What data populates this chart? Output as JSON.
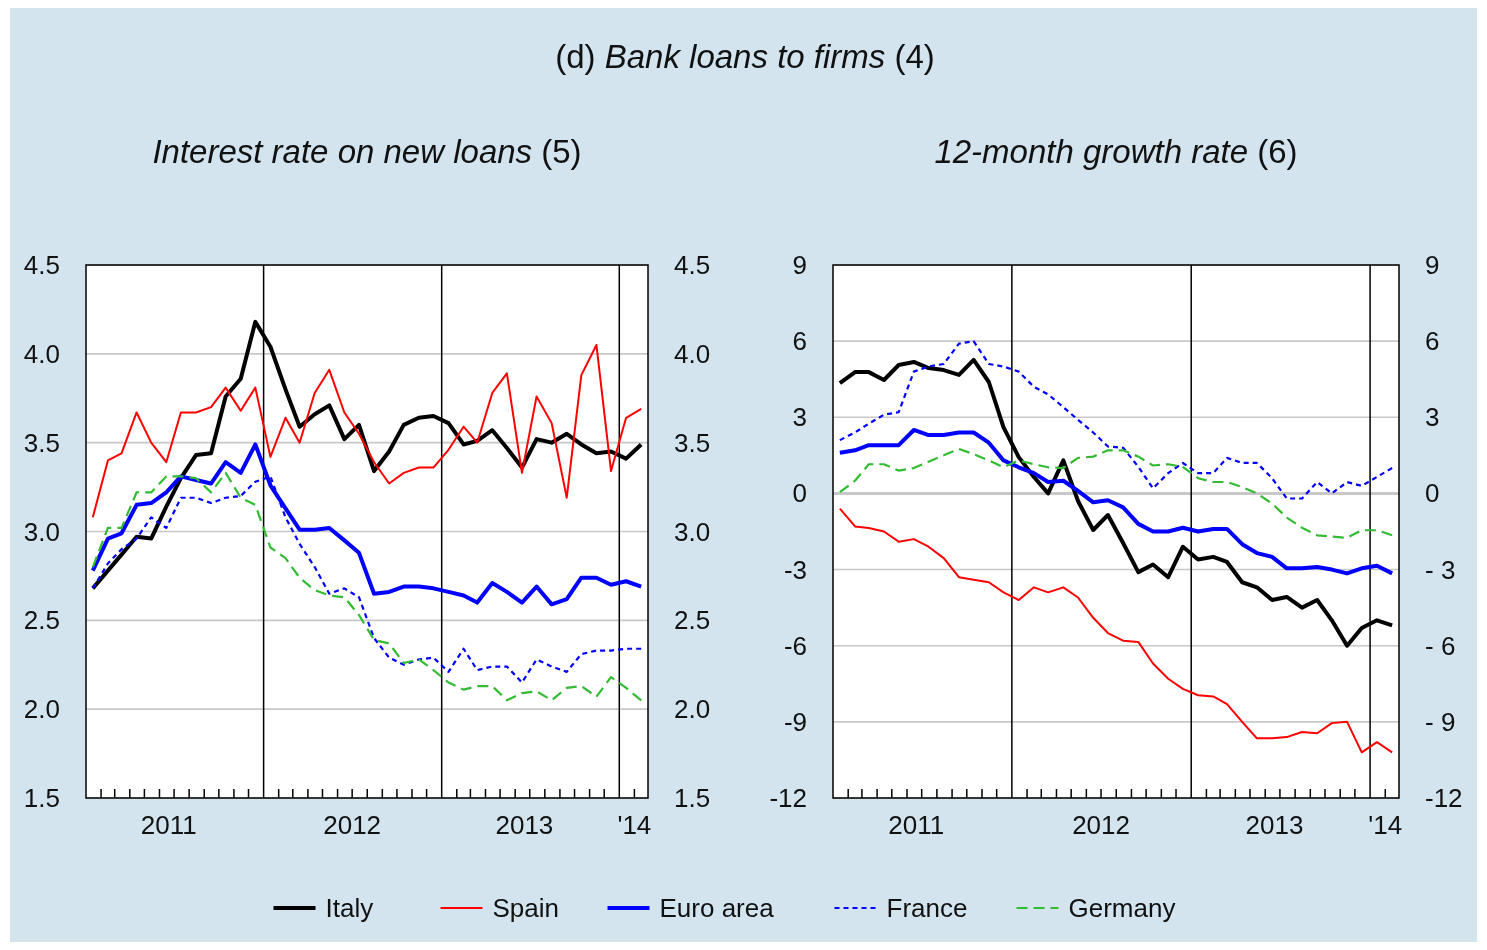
{
  "chart_data": [
    {
      "type": "line",
      "title": "Interest rate on new loans (5)",
      "annotations": [
        "(d) Bank loans to firms (4)"
      ],
      "x": [
        "2011-01-15",
        "2011-02-15",
        "2011-03-15",
        "2011-04-15",
        "2011-05-15",
        "2011-06-15",
        "2011-07-15",
        "2011-08-15",
        "2011-09-15",
        "2011-10-15",
        "2011-11-15",
        "2011-12-15",
        "2012-01-15",
        "2012-02-15",
        "2012-03-15",
        "2012-04-15",
        "2012-05-15",
        "2012-06-15",
        "2012-07-15",
        "2012-08-15",
        "2012-09-15",
        "2012-10-15",
        "2012-11-15",
        "2012-12-15",
        "2013-01-15",
        "2013-02-15",
        "2013-03-15",
        "2013-04-15",
        "2013-05-15",
        "2013-06-15",
        "2013-07-15",
        "2013-08-15",
        "2013-09-15",
        "2013-10-15",
        "2013-11-15",
        "2013-12-15",
        "2014-01-15",
        "2014-02-15"
      ],
      "series": [
        {
          "name": "Italy",
          "color": "#000000",
          "line_style": "solid",
          "values": [
            2.68,
            2.78,
            2.87,
            2.97,
            2.96,
            3.14,
            3.3,
            3.43,
            3.44,
            3.76,
            3.86,
            4.18,
            4.04,
            3.8,
            3.59,
            3.66,
            3.71,
            3.52,
            3.6,
            3.34,
            3.45,
            3.6,
            3.64,
            3.65,
            3.61,
            3.49,
            3.51,
            3.57,
            3.47,
            3.36,
            3.52,
            3.5,
            3.55,
            3.49,
            3.44,
            3.45,
            3.41,
            3.49
          ]
        },
        {
          "name": "Spain",
          "color": "#ff0000",
          "line_style": "solid",
          "values": [
            3.08,
            3.4,
            3.44,
            3.67,
            3.5,
            3.39,
            3.67,
            3.67,
            3.7,
            3.81,
            3.68,
            3.81,
            3.42,
            3.64,
            3.5,
            3.78,
            3.91,
            3.67,
            3.55,
            3.39,
            3.27,
            3.33,
            3.36,
            3.36,
            3.46,
            3.59,
            3.5,
            3.78,
            3.89,
            3.33,
            3.76,
            3.61,
            3.19,
            3.88,
            4.05,
            3.34,
            3.64,
            3.69
          ]
        },
        {
          "name": "Euro area",
          "color": "#0000ff",
          "line_style": "solid",
          "values": [
            2.78,
            2.96,
            2.99,
            3.15,
            3.16,
            3.22,
            3.31,
            3.29,
            3.27,
            3.39,
            3.33,
            3.49,
            3.26,
            3.13,
            3.01,
            3.01,
            3.02,
            2.95,
            2.88,
            2.65,
            2.66,
            2.69,
            2.69,
            2.68,
            2.66,
            2.64,
            2.6,
            2.71,
            2.66,
            2.6,
            2.69,
            2.59,
            2.62,
            2.74,
            2.74,
            2.7,
            2.72,
            2.69
          ]
        },
        {
          "name": "France",
          "color": "#0000ff",
          "line_style": "dotted",
          "values": [
            2.68,
            2.82,
            2.9,
            2.96,
            3.08,
            3.02,
            3.19,
            3.19,
            3.16,
            3.19,
            3.2,
            3.28,
            3.31,
            3.08,
            2.93,
            2.8,
            2.65,
            2.68,
            2.63,
            2.4,
            2.29,
            2.25,
            2.28,
            2.29,
            2.21,
            2.34,
            2.22,
            2.24,
            2.24,
            2.15,
            2.28,
            2.24,
            2.21,
            2.31,
            2.33,
            2.33,
            2.34,
            2.34
          ]
        },
        {
          "name": "Germany",
          "color": "#33bb33",
          "line_style": "dashed",
          "values": [
            2.8,
            3.02,
            3.02,
            3.22,
            3.22,
            3.31,
            3.31,
            3.3,
            3.22,
            3.33,
            3.19,
            3.15,
            2.91,
            2.85,
            2.74,
            2.67,
            2.64,
            2.63,
            2.53,
            2.39,
            2.37,
            2.26,
            2.28,
            2.22,
            2.15,
            2.11,
            2.13,
            2.13,
            2.05,
            2.09,
            2.1,
            2.05,
            2.12,
            2.13,
            2.07,
            2.18,
            2.12,
            2.05
          ]
        }
      ],
      "xlim": [
        "2011-01-01",
        "2014-03-01"
      ],
      "xticks": [
        {
          "value": "2011-06-20",
          "label": "2011"
        },
        {
          "value": "2012-07-01",
          "label": "2012"
        },
        {
          "value": "2013-06-20",
          "label": "2013"
        },
        {
          "value": "2014-02-01",
          "label": "'14"
        },
        {
          "value": "2011-02-01",
          "label": null
        },
        {
          "value": "2011-03-01",
          "label": null
        },
        {
          "value": "2011-04-01",
          "label": null
        },
        {
          "value": "2011-05-01",
          "label": null
        },
        {
          "value": "2011-06-01",
          "label": null
        },
        {
          "value": "2011-07-01",
          "label": null
        },
        {
          "value": "2011-08-01",
          "label": null
        },
        {
          "value": "2011-09-01",
          "label": null
        },
        {
          "value": "2011-10-01",
          "label": null
        },
        {
          "value": "2011-11-01",
          "label": null
        },
        {
          "value": "2011-12-01",
          "label": null
        },
        {
          "value": "2012-02-01",
          "label": null
        },
        {
          "value": "2012-03-01",
          "label": null
        },
        {
          "value": "2012-04-01",
          "label": null
        },
        {
          "value": "2012-05-01",
          "label": null
        },
        {
          "value": "2012-06-01",
          "label": null
        },
        {
          "value": "2012-07-01",
          "label": null
        },
        {
          "value": "2012-08-01",
          "label": null
        },
        {
          "value": "2012-09-01",
          "label": null
        },
        {
          "value": "2012-10-01",
          "label": null
        },
        {
          "value": "2012-11-01",
          "label": null
        },
        {
          "value": "2012-12-01",
          "label": null
        },
        {
          "value": "2013-02-01",
          "label": null
        },
        {
          "value": "2013-03-01",
          "label": null
        },
        {
          "value": "2013-04-01",
          "label": null
        },
        {
          "value": "2013-05-01",
          "label": null
        },
        {
          "value": "2013-06-01",
          "label": null
        },
        {
          "value": "2013-07-01",
          "label": null
        },
        {
          "value": "2013-08-01",
          "label": null
        },
        {
          "value": "2013-09-01",
          "label": null
        },
        {
          "value": "2013-10-01",
          "label": null
        },
        {
          "value": "2013-11-01",
          "label": null
        },
        {
          "value": "2013-12-01",
          "label": null
        },
        {
          "value": "2014-02-01",
          "label": null
        }
      ],
      "ylim": [
        1.5,
        4.5
      ],
      "yticks": [
        {
          "value": 1.5,
          "label": "1.5"
        },
        {
          "value": 2,
          "label": "2.0"
        },
        {
          "value": 2.5,
          "label": "2.5"
        },
        {
          "value": 3,
          "label": "3.0"
        },
        {
          "value": 3.5,
          "label": "3.5"
        },
        {
          "value": 4,
          "label": "4.0"
        },
        {
          "value": 4.5,
          "label": "4.5"
        }
      ],
      "y2lim": [
        1.5,
        4.5
      ],
      "y2ticks": [
        {
          "value": 1.5,
          "label": "1.5"
        },
        {
          "value": 2,
          "label": "2.0"
        },
        {
          "value": 2.5,
          "label": "2.5"
        },
        {
          "value": 3,
          "label": "3.0"
        },
        {
          "value": 3.5,
          "label": "3.5"
        },
        {
          "value": 4,
          "label": "4.0"
        },
        {
          "value": 4.5,
          "label": "4.5"
        }
      ],
      "ref_lines": [
        {
          "axis": "x",
          "value": "2012-01-01",
          "color": "#000000"
        },
        {
          "axis": "x",
          "value": "2013-01-01",
          "color": "#000000"
        },
        {
          "axis": "x",
          "value": "2014-01-01",
          "color": "#000000"
        }
      ],
      "grid": "y",
      "legend": "bottom",
      "marker": "none"
    },
    {
      "type": "line",
      "title": "12-month growth rate (6)",
      "x": [
        "2011-01-15",
        "2011-02-15",
        "2011-03-15",
        "2011-04-15",
        "2011-05-15",
        "2011-06-15",
        "2011-07-15",
        "2011-08-15",
        "2011-09-15",
        "2011-10-15",
        "2011-11-15",
        "2011-12-15",
        "2012-01-15",
        "2012-02-15",
        "2012-03-15",
        "2012-04-15",
        "2012-05-15",
        "2012-06-15",
        "2012-07-15",
        "2012-08-15",
        "2012-09-15",
        "2012-10-15",
        "2012-11-15",
        "2012-12-15",
        "2013-01-15",
        "2013-02-15",
        "2013-03-15",
        "2013-04-15",
        "2013-05-15",
        "2013-06-15",
        "2013-07-15",
        "2013-08-15",
        "2013-09-15",
        "2013-10-15",
        "2013-11-15",
        "2013-12-15",
        "2014-01-15",
        "2014-02-15"
      ],
      "series": [
        {
          "color": "#000000",
          "line_style": "solid",
          "values": [
            4.35,
            4.78,
            4.78,
            4.47,
            5.06,
            5.18,
            4.94,
            4.86,
            4.67,
            5.26,
            4.39,
            2.6,
            1.43,
            0.65,
            0.0,
            1.3,
            -0.3,
            -1.44,
            -0.85,
            -1.95,
            -3.1,
            -2.8,
            -3.3,
            -2.1,
            -2.6,
            -2.5,
            -2.7,
            -3.5,
            -3.7,
            -4.2,
            -4.08,
            -4.5,
            -4.2,
            -5.0,
            -6.0,
            -5.3,
            -5.0,
            -5.2
          ]
        },
        {
          "color": "#ff0000",
          "line_style": "solid",
          "values": [
            -0.6,
            -1.3,
            -1.36,
            -1.5,
            -1.9,
            -1.8,
            -2.1,
            -2.55,
            -3.3,
            -3.4,
            -3.5,
            -3.9,
            -4.2,
            -3.7,
            -3.9,
            -3.7,
            -4.1,
            -4.9,
            -5.5,
            -5.8,
            -5.85,
            -6.7,
            -7.3,
            -7.7,
            -7.95,
            -8.0,
            -8.3,
            -9.0,
            -9.65,
            -9.65,
            -9.6,
            -9.4,
            -9.45,
            -9.05,
            -9.0,
            -10.2,
            -9.8,
            -10.2
          ]
        },
        {
          "color": "#0000ff",
          "line_style": "solid",
          "values": [
            1.6,
            1.7,
            1.9,
            1.9,
            1.9,
            2.5,
            2.3,
            2.3,
            2.4,
            2.4,
            2.0,
            1.3,
            1.03,
            0.8,
            0.45,
            0.5,
            0.1,
            -0.35,
            -0.27,
            -0.55,
            -1.2,
            -1.5,
            -1.5,
            -1.35,
            -1.5,
            -1.4,
            -1.4,
            -2.0,
            -2.35,
            -2.5,
            -2.95,
            -2.95,
            -2.9,
            -3.0,
            -3.15,
            -2.95,
            -2.85,
            -3.15
          ]
        },
        {
          "color": "#0000ff",
          "line_style": "dotted",
          "values": [
            2.1,
            2.4,
            2.75,
            3.1,
            3.2,
            4.8,
            5.0,
            5.1,
            5.9,
            6.0,
            5.1,
            5.0,
            4.8,
            4.2,
            3.9,
            3.4,
            2.9,
            2.4,
            1.85,
            1.8,
            1.05,
            0.2,
            0.8,
            1.2,
            0.8,
            0.8,
            1.4,
            1.2,
            1.2,
            0.6,
            -0.2,
            -0.2,
            0.45,
            0.0,
            0.45,
            0.3,
            0.65,
            1.0
          ]
        },
        {
          "color": "#33bb33",
          "line_style": "dashed",
          "values": [
            0.05,
            0.5,
            1.15,
            1.15,
            0.9,
            1.0,
            1.25,
            1.5,
            1.75,
            1.55,
            1.3,
            1.03,
            1.3,
            1.15,
            1.03,
            1.0,
            1.4,
            1.45,
            1.7,
            1.7,
            1.45,
            1.1,
            1.15,
            1.05,
            0.6,
            0.45,
            0.45,
            0.25,
            0.0,
            -0.4,
            -0.95,
            -1.35,
            -1.65,
            -1.7,
            -1.75,
            -1.45,
            -1.45,
            -1.65
          ]
        }
      ],
      "xlim": [
        "2011-01-01",
        "2014-03-01"
      ],
      "xticks": [
        {
          "value": "2011-06-20",
          "label": "2011"
        },
        {
          "value": "2012-07-01",
          "label": "2012"
        },
        {
          "value": "2013-06-20",
          "label": "2013"
        },
        {
          "value": "2014-02-01",
          "label": "'14"
        },
        {
          "value": "2011-02-01",
          "label": null
        },
        {
          "value": "2011-03-01",
          "label": null
        },
        {
          "value": "2011-04-01",
          "label": null
        },
        {
          "value": "2011-05-01",
          "label": null
        },
        {
          "value": "2011-06-01",
          "label": null
        },
        {
          "value": "2011-07-01",
          "label": null
        },
        {
          "value": "2011-08-01",
          "label": null
        },
        {
          "value": "2011-09-01",
          "label": null
        },
        {
          "value": "2011-10-01",
          "label": null
        },
        {
          "value": "2011-11-01",
          "label": null
        },
        {
          "value": "2011-12-01",
          "label": null
        },
        {
          "value": "2012-02-01",
          "label": null
        },
        {
          "value": "2012-03-01",
          "label": null
        },
        {
          "value": "2012-04-01",
          "label": null
        },
        {
          "value": "2012-05-01",
          "label": null
        },
        {
          "value": "2012-06-01",
          "label": null
        },
        {
          "value": "2012-07-01",
          "label": null
        },
        {
          "value": "2012-08-01",
          "label": null
        },
        {
          "value": "2012-09-01",
          "label": null
        },
        {
          "value": "2012-10-01",
          "label": null
        },
        {
          "value": "2012-11-01",
          "label": null
        },
        {
          "value": "2012-12-01",
          "label": null
        },
        {
          "value": "2013-02-01",
          "label": null
        },
        {
          "value": "2013-03-01",
          "label": null
        },
        {
          "value": "2013-04-01",
          "label": null
        },
        {
          "value": "2013-05-01",
          "label": null
        },
        {
          "value": "2013-06-01",
          "label": null
        },
        {
          "value": "2013-07-01",
          "label": null
        },
        {
          "value": "2013-08-01",
          "label": null
        },
        {
          "value": "2013-09-01",
          "label": null
        },
        {
          "value": "2013-10-01",
          "label": null
        },
        {
          "value": "2013-11-01",
          "label": null
        },
        {
          "value": "2013-12-01",
          "label": null
        },
        {
          "value": "2014-02-01",
          "label": null
        }
      ],
      "ylim": [
        -12,
        9
      ],
      "yticks": [
        -12,
        -9,
        -6,
        -3,
        0,
        3,
        6,
        9
      ],
      "y2lim": [
        -12,
        9
      ],
      "y2ticks": [
        {
          "value": -12,
          "label": "-12"
        },
        {
          "value": -9,
          "label": "- 9"
        },
        {
          "value": -6,
          "label": "- 6"
        },
        {
          "value": -3,
          "label": "- 3"
        },
        0,
        3,
        6,
        9
      ],
      "ref_lines": [
        {
          "axis": "x",
          "value": "2012-01-01",
          "color": "#000000"
        },
        {
          "axis": "x",
          "value": "2013-01-01",
          "color": "#000000"
        },
        {
          "axis": "x",
          "value": "2014-01-01",
          "color": "#000000"
        }
      ],
      "grid": "y",
      "marker": "none"
    }
  ]
}
